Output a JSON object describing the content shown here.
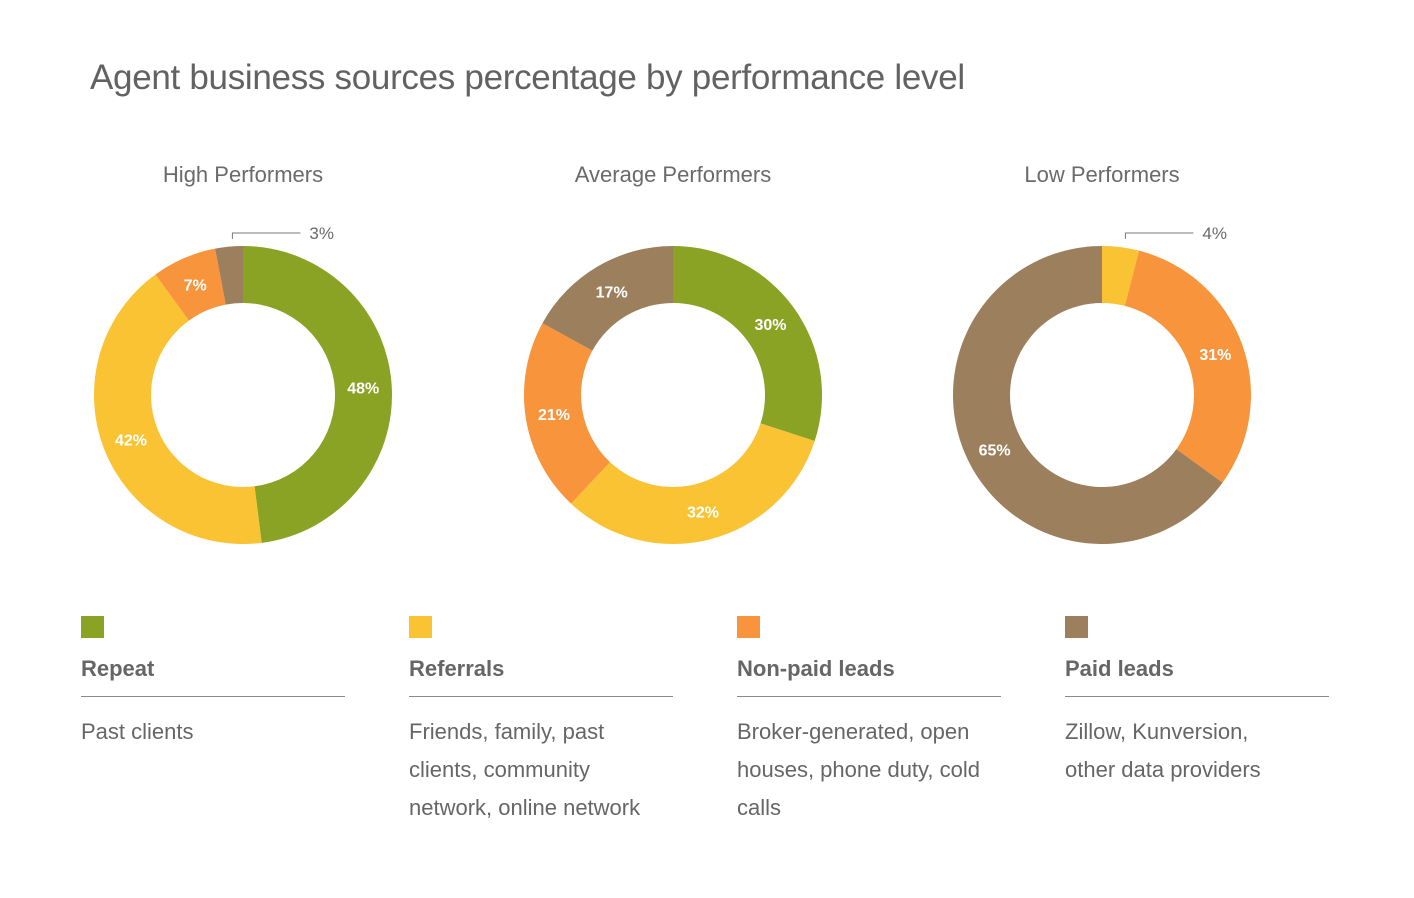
{
  "title": "Agent business sources percentage by performance level",
  "colors": {
    "repeat": "#8ba325",
    "referrals": "#f9c334",
    "nonpaid": "#f7943c",
    "paid": "#9c805e"
  },
  "chart_data": {
    "type": "pie",
    "title": "Agent business sources percentage by performance level",
    "categories": [
      "Repeat",
      "Referrals",
      "Non-paid leads",
      "Paid leads"
    ],
    "charts": [
      {
        "title": "High Performers",
        "values": [
          48,
          42,
          7,
          3
        ],
        "labels": [
          "48%",
          "42%",
          "7%",
          "3%"
        ],
        "external_label_index": 3
      },
      {
        "title": "Average Performers",
        "values": [
          30,
          32,
          21,
          17
        ],
        "labels": [
          "30%",
          "32%",
          "21%",
          "17%"
        ],
        "external_label_index": -1
      },
      {
        "title": "Low Performers",
        "values": [
          0,
          4,
          31,
          65
        ],
        "labels": [
          "",
          "4%",
          "31%",
          "65%"
        ],
        "external_label_index": 1
      }
    ],
    "legend": "bottom"
  },
  "legend": [
    {
      "name": "Repeat",
      "description": "Past clients",
      "color_key": "repeat"
    },
    {
      "name": "Referrals",
      "description": "Friends, family, past clients, community network, online network",
      "color_key": "referrals"
    },
    {
      "name": "Non-paid leads",
      "description": "Broker-generated, open houses, phone duty, cold calls",
      "color_key": "nonpaid"
    },
    {
      "name": "Paid leads",
      "description": "Zillow, Kunversion, other data providers",
      "color_key": "paid"
    }
  ]
}
